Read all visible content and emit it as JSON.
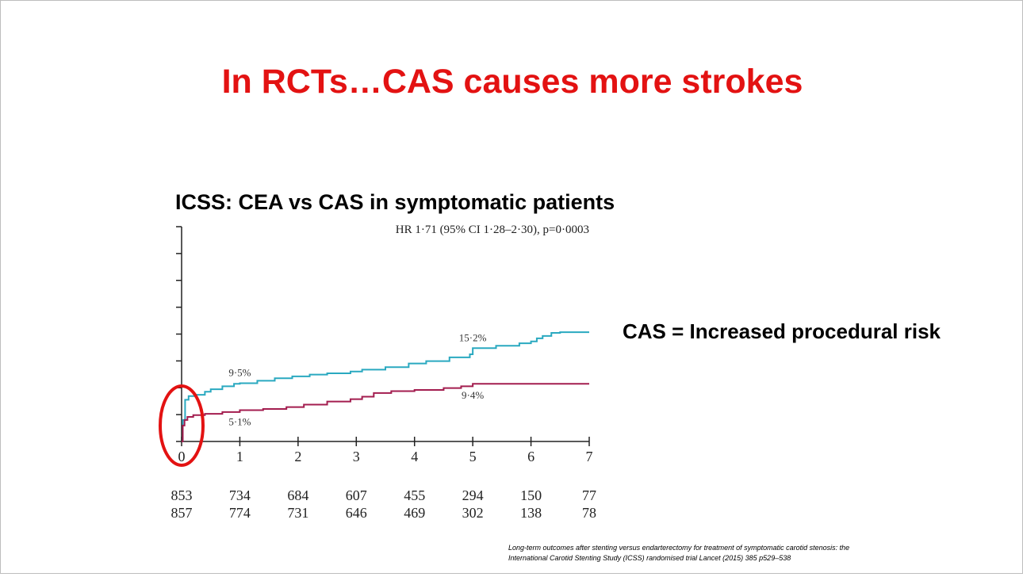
{
  "slide": {
    "title": "In RCTs…CAS causes more strokes",
    "title_color": "#e31212",
    "side_note": "CAS = Increased procedural risk",
    "citation_line1": "Long-term outcomes after stenting versus endarterectomy for treatment of symptomatic carotid stenosis: the",
    "citation_line2": "International Carotid Stenting Study (ICSS) randomised trial    Lancet (2015) 385 p529–538"
  },
  "chart_data": {
    "type": "line",
    "title": "ICSS: CEA vs CAS in symptomatic patients",
    "annotation": "HR 1·71 (95% CI 1·28–2·30), p=0·0003",
    "xlabel": "",
    "ylabel": "",
    "xlim": [
      0,
      7
    ],
    "ylim": [
      0,
      35
    ],
    "x_ticks": [
      "0",
      "1",
      "2",
      "3",
      "4",
      "5",
      "6",
      "7"
    ],
    "y_tick_count": 8,
    "grid": false,
    "series": [
      {
        "color": "#2aa9c0",
        "points": [
          [
            0,
            0
          ],
          [
            0.02,
            3.5
          ],
          [
            0.06,
            6.8
          ],
          [
            0.12,
            7.4
          ],
          [
            0.25,
            7.6
          ],
          [
            0.4,
            8.1
          ],
          [
            0.5,
            8.5
          ],
          [
            0.7,
            9.0
          ],
          [
            0.9,
            9.4
          ],
          [
            1.0,
            9.5
          ],
          [
            1.3,
            9.9
          ],
          [
            1.6,
            10.3
          ],
          [
            1.9,
            10.6
          ],
          [
            2.2,
            10.9
          ],
          [
            2.5,
            11.1
          ],
          [
            2.9,
            11.4
          ],
          [
            3.1,
            11.7
          ],
          [
            3.5,
            12.1
          ],
          [
            3.9,
            12.7
          ],
          [
            4.2,
            13.1
          ],
          [
            4.6,
            13.7
          ],
          [
            4.95,
            14.2
          ],
          [
            5.0,
            15.2
          ],
          [
            5.4,
            15.6
          ],
          [
            5.8,
            16.0
          ],
          [
            6.0,
            16.3
          ],
          [
            6.1,
            16.8
          ],
          [
            6.2,
            17.2
          ],
          [
            6.35,
            17.7
          ],
          [
            6.5,
            17.8
          ],
          [
            7.0,
            17.8
          ]
        ],
        "labels": [
          {
            "x": 1,
            "text": "9·5%"
          },
          {
            "x": 5,
            "text": "15·2%"
          }
        ]
      },
      {
        "color": "#a31d4f",
        "points": [
          [
            0,
            0
          ],
          [
            0.02,
            2.6
          ],
          [
            0.05,
            3.5
          ],
          [
            0.1,
            4.0
          ],
          [
            0.2,
            4.3
          ],
          [
            0.4,
            4.5
          ],
          [
            0.7,
            4.8
          ],
          [
            1.0,
            5.1
          ],
          [
            1.4,
            5.3
          ],
          [
            1.8,
            5.6
          ],
          [
            2.1,
            6.0
          ],
          [
            2.5,
            6.5
          ],
          [
            2.9,
            6.9
          ],
          [
            3.1,
            7.3
          ],
          [
            3.3,
            7.9
          ],
          [
            3.6,
            8.2
          ],
          [
            4.0,
            8.4
          ],
          [
            4.5,
            8.7
          ],
          [
            4.8,
            9.0
          ],
          [
            5.0,
            9.4
          ],
          [
            5.2,
            9.4
          ],
          [
            7.0,
            9.4
          ]
        ],
        "labels": [
          {
            "x": 1,
            "text": "5·1%"
          },
          {
            "x": 5,
            "text": "9·4%"
          }
        ]
      }
    ],
    "number_at_risk": [
      [
        "853",
        "734",
        "684",
        "607",
        "455",
        "294",
        "150",
        "77"
      ],
      [
        "857",
        "774",
        "731",
        "646",
        "469",
        "302",
        "138",
        "78"
      ]
    ],
    "highlight_circle_color": "#e31212"
  }
}
